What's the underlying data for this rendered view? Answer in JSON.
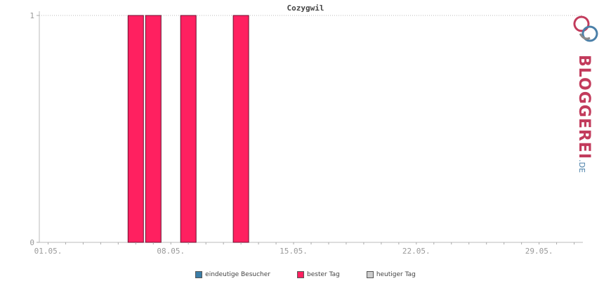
{
  "chart_data": {
    "type": "bar",
    "title": "Cozygwil",
    "x": [
      6,
      7,
      9,
      12
    ],
    "values": [
      1,
      1,
      1,
      1
    ],
    "xlim": [
      0.5,
      31.5
    ],
    "ylim": [
      0,
      1
    ],
    "x_tick_values": [
      1,
      8,
      15,
      22,
      29
    ],
    "x_tick_labels": [
      "01.05.",
      "08.05.",
      "15.05.",
      "22.05.",
      "29.05."
    ],
    "y_tick_values": [
      0,
      1
    ],
    "y_tick_labels": [
      "0",
      "1"
    ],
    "bar_color": "#ff2060",
    "grid": "dotted line at top",
    "series": [
      {
        "name": "eindeutige Besucher",
        "color": "#3b7ea8"
      },
      {
        "name": "bester Tag",
        "color": "#ff2060"
      },
      {
        "name": "heutiger Tag",
        "color": "#cccccc"
      }
    ]
  },
  "logo": {
    "text": "BLOGGEREI",
    "suffix": ".DE"
  }
}
